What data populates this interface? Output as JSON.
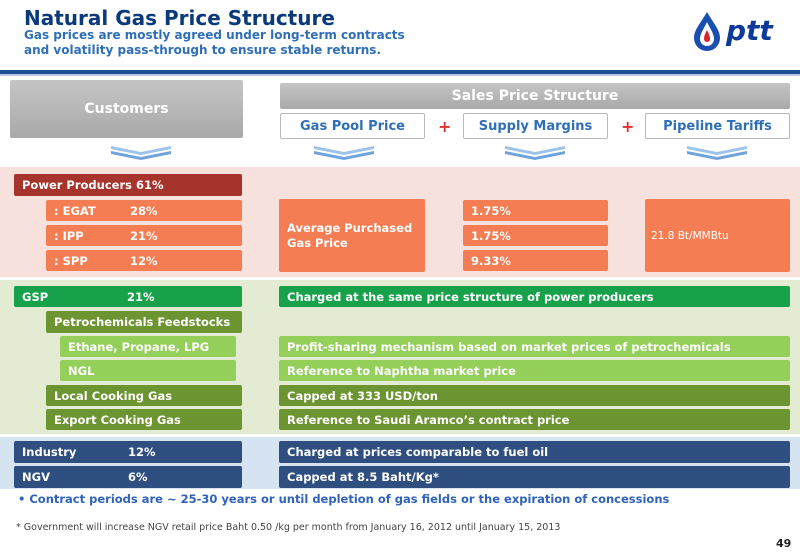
{
  "header": {
    "title": "Natural Gas Price Structure",
    "subtitle_line1": "Gas prices are mostly agreed under long-term contracts",
    "subtitle_line2": "and volatility pass-through to ensure stable returns.",
    "logo_text": "ptt"
  },
  "columns": {
    "customers": "Customers",
    "sales_price_structure": "Sales Price Structure",
    "gas_pool_price": "Gas Pool Price",
    "supply_margins": "Supply Margins",
    "pipeline_tariffs": "Pipeline Tariffs",
    "plus": "+"
  },
  "power": {
    "label": "Power Producers 61%",
    "egat_label": ": EGAT",
    "egat_pct": "28%",
    "ipp_label": ": IPP",
    "ipp_pct": "21%",
    "spp_label": ": SPP",
    "spp_pct": "12%",
    "avg_price_line1": "Average Purchased",
    "avg_price_line2": "Gas Price",
    "margin_egat": "1.75%",
    "margin_ipp": "1.75%",
    "margin_spp": "9.33%",
    "tariff": "21.8 Bt/MMBtu"
  },
  "gsp": {
    "label": "GSP",
    "pct": "21%",
    "pricing": "Charged at the same price structure of power producers",
    "petro_label": "Petrochemicals Feedstocks",
    "ethane_label": "Ethane, Propane, LPG",
    "ethane_pricing": "Profit-sharing mechanism based on market prices of petrochemicals",
    "ngl_label": "NGL",
    "ngl_pricing": "Reference to Naphtha market price",
    "local_label": "Local Cooking Gas",
    "local_pricing": "Capped at 333 USD/ton",
    "export_label": "Export Cooking Gas",
    "export_pricing": "Reference to Saudi Aramco’s contract price"
  },
  "industry": {
    "label": "Industry",
    "pct": "12%",
    "pricing": "Charged at prices comparable to fuel oil"
  },
  "ngv": {
    "label": "NGV",
    "pct": "6%",
    "pricing": "Capped at 8.5 Baht/Kg*"
  },
  "notes": {
    "bullet": "•  Contract periods are ~ 25-30 years or until depletion of gas fields or the expiration of concessions",
    "footnote": "*   Government will increase NGV retail price  Baht 0.50 /kg per month from January 16, 2012 until January 15, 2013",
    "page_number": "49"
  }
}
